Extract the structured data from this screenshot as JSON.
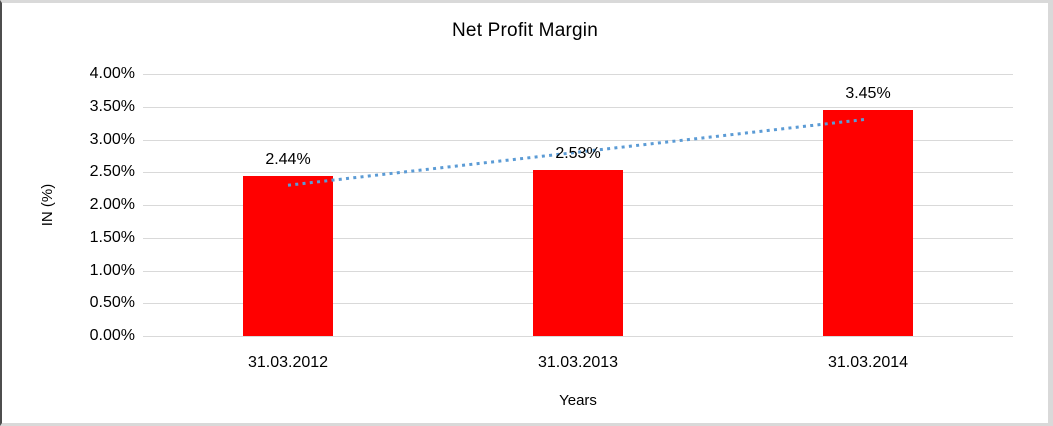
{
  "chart_data": {
    "type": "bar",
    "title": "Net Profit Margin",
    "xlabel": "Years",
    "ylabel": "IN (%)",
    "categories": [
      "31.03.2012",
      "31.03.2013",
      "31.03.2014"
    ],
    "values": [
      2.44,
      2.53,
      3.45
    ],
    "data_labels": [
      "2.44%",
      "2.53%",
      "3.45%"
    ],
    "ylim": [
      0,
      4
    ],
    "ytick_step": 0.5,
    "ytick_labels": [
      "0.00%",
      "0.50%",
      "1.00%",
      "1.50%",
      "2.00%",
      "2.50%",
      "3.00%",
      "3.50%",
      "4.00%"
    ],
    "grid": true,
    "legend": "none",
    "colors": {
      "bar": "#ff0000",
      "gridline": "#d9d9d9",
      "text": "#000000",
      "trendline": "#5b9bd5",
      "frame": "#d9d9d9"
    },
    "trendline": {
      "type": "linear",
      "style": "dotted"
    }
  }
}
